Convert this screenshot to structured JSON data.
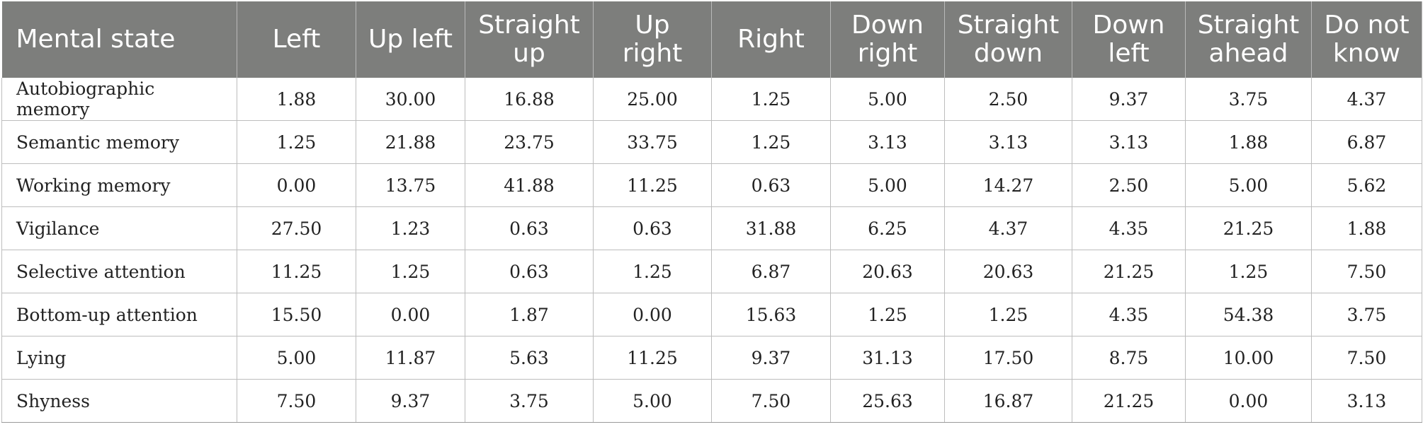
{
  "table": {
    "headers": [
      "Mental state",
      "Left",
      "Up left",
      "Straight up",
      "Up right",
      "Right",
      "Down right",
      "Straight down",
      "Down left",
      "Straight ahead",
      "Do not know"
    ],
    "rows": [
      [
        "Autobiographic memory",
        "1.88",
        "30.00",
        "16.88",
        "25.00",
        "1.25",
        "5.00",
        "2.50",
        "9.37",
        "3.75",
        "4.37"
      ],
      [
        "Semantic memory",
        "1.25",
        "21.88",
        "23.75",
        "33.75",
        "1.25",
        "3.13",
        "3.13",
        "3.13",
        "1.88",
        "6.87"
      ],
      [
        "Working memory",
        "0.00",
        "13.75",
        "41.88",
        "11.25",
        "0.63",
        "5.00",
        "14.27",
        "2.50",
        "5.00",
        "5.62"
      ],
      [
        "Vigilance",
        "27.50",
        "1.23",
        "0.63",
        "0.63",
        "31.88",
        "6.25",
        "4.37",
        "4.35",
        "21.25",
        "1.88"
      ],
      [
        "Selective attention",
        "11.25",
        "1.25",
        "0.63",
        "1.25",
        "6.87",
        "20.63",
        "20.63",
        "21.25",
        "1.25",
        "7.50"
      ],
      [
        "Bottom-up attention",
        "15.50",
        "0.00",
        "1.87",
        "0.00",
        "15.63",
        "1.25",
        "1.25",
        "4.35",
        "54.38",
        "3.75"
      ],
      [
        "Lying",
        "5.00",
        "11.87",
        "5.63",
        "11.25",
        "9.37",
        "31.13",
        "17.50",
        "8.75",
        "10.00",
        "7.50"
      ],
      [
        "Shyness",
        "7.50",
        "9.37",
        "3.75",
        "5.00",
        "7.50",
        "25.63",
        "16.87",
        "21.25",
        "0.00",
        "3.13"
      ]
    ]
  },
  "colors": {
    "header_bg": "#7d7e7c",
    "header_text": "#ffffff",
    "grid": "#bdbdbd"
  }
}
